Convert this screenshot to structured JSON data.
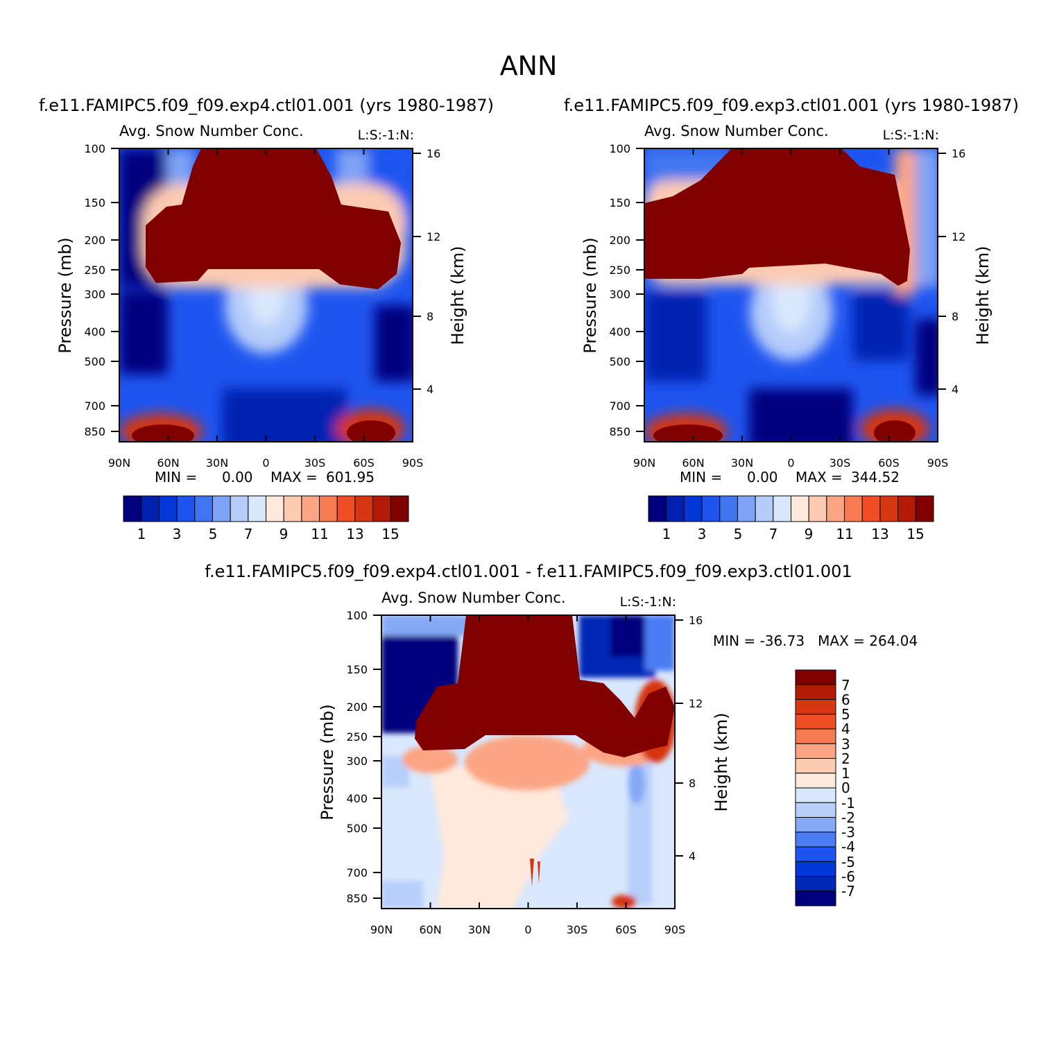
{
  "page_title": "ANN",
  "colors": {
    "scale15": [
      "#00007f",
      "#0020b0",
      "#0038d8",
      "#1e55f0",
      "#3f76f0",
      "#7fa3f5",
      "#b5ccfa",
      "#d9e8fd",
      "#ffe9dc",
      "#fdcbb2",
      "#fca584",
      "#f77b50",
      "#f04d24",
      "#d63610",
      "#b31b06",
      "#800000"
    ],
    "diff15": [
      "#00007f",
      "#0028b5",
      "#0038d8",
      "#1e55f0",
      "#4b7cf2",
      "#86a9f6",
      "#b8cffb",
      "#d9e8fd",
      "#ffe9dc",
      "#fdcbb2",
      "#fca584",
      "#f77b50",
      "#f04d24",
      "#d63610",
      "#b31b06",
      "#800000"
    ]
  },
  "chart_data": [
    {
      "type": "contour",
      "panel_title": "f.e11.FAMIPC5.f09_f09.exp4.ctl01.001 (yrs 1980-1987)",
      "variable_label": "Avg. Snow Number Conc.",
      "corner_label": "L:S:-1:N:",
      "ylabel": "Pressure (mb)",
      "y2label": "Height (km)",
      "x_ticks": [
        "90N",
        "60N",
        "30N",
        "0",
        "30S",
        "60S",
        "90S"
      ],
      "y_ticks": [
        100,
        150,
        200,
        250,
        300,
        400,
        500,
        700,
        850
      ],
      "y2_ticks": [
        16,
        12,
        8,
        4
      ],
      "min_label": "MIN =",
      "min_value": "0.00",
      "max_label": "MAX =",
      "max_value": "601.95",
      "colorbar_labels": [
        "1",
        "3",
        "5",
        "7",
        "9",
        "11",
        "13",
        "15"
      ]
    },
    {
      "type": "contour",
      "panel_title": "f.e11.FAMIPC5.f09_f09.exp3.ctl01.001 (yrs 1980-1987)",
      "variable_label": "Avg. Snow Number Conc.",
      "corner_label": "L:S:-1:N:",
      "ylabel": "Pressure (mb)",
      "y2label": "Height (km)",
      "x_ticks": [
        "90N",
        "60N",
        "30N",
        "0",
        "30S",
        "60S",
        "90S"
      ],
      "y_ticks": [
        100,
        150,
        200,
        250,
        300,
        400,
        500,
        700,
        850
      ],
      "y2_ticks": [
        16,
        12,
        8,
        4
      ],
      "min_label": "MIN =",
      "min_value": "0.00",
      "max_label": "MAX =",
      "max_value": "344.52",
      "colorbar_labels": [
        "1",
        "3",
        "5",
        "7",
        "9",
        "11",
        "13",
        "15"
      ]
    },
    {
      "type": "contour",
      "panel_title": "f.e11.FAMIPC5.f09_f09.exp4.ctl01.001 - f.e11.FAMIPC5.f09_f09.exp3.ctl01.001",
      "variable_label": "Avg. Snow Number Conc.",
      "corner_label": "L:S:-1:N:",
      "ylabel": "Pressure (mb)",
      "y2label": "Height (km)",
      "x_ticks": [
        "90N",
        "60N",
        "30N",
        "0",
        "30S",
        "60S",
        "90S"
      ],
      "y_ticks": [
        100,
        150,
        200,
        250,
        300,
        400,
        500,
        700,
        850
      ],
      "y2_ticks": [
        16,
        12,
        8,
        4
      ],
      "minmax_text": "MIN = -36.73   MAX = 264.04",
      "colorbar_labels": [
        "7",
        "6",
        "5",
        "4",
        "3",
        "2",
        "1",
        "0",
        "-1",
        "-2",
        "-3",
        "-4",
        "-5",
        "-6",
        "-7"
      ]
    }
  ]
}
